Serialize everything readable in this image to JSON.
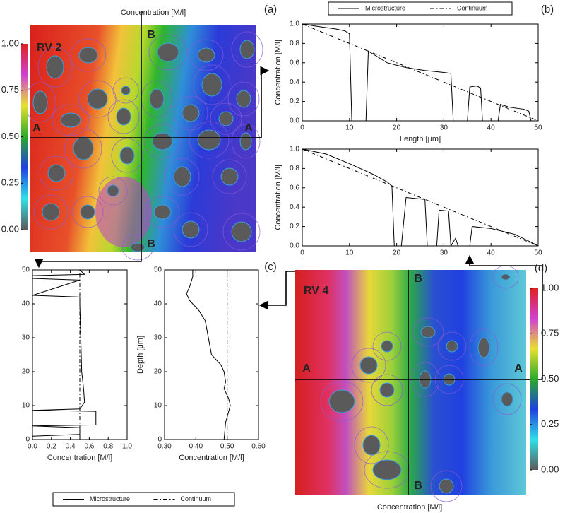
{
  "chart_data": [
    {
      "type": "heatmap",
      "title": "Concentration [M/l]",
      "panel": "(a)",
      "label": "RV 2",
      "section_labels": [
        "A",
        "A",
        "B",
        "B"
      ],
      "colorbar": {
        "lim": [
          0,
          1
        ],
        "ticks": [
          {
            "value": 0,
            "label": "0.00"
          },
          {
            "value": 0.25,
            "label": "0.25"
          },
          {
            "value": 0.5,
            "label": "0.50"
          },
          {
            "value": 0.75,
            "label": "0.75"
          },
          {
            "value": 1,
            "label": "1.00"
          }
        ],
        "colormap": [
          "#5a5a5a",
          "#30e0e8",
          "#2040e0",
          "#2aaa2a",
          "#e8e030",
          "#d040d0",
          "#e02020"
        ]
      }
    },
    {
      "type": "line",
      "panel": "(b)",
      "legend": "top",
      "ylabel": "Concentration [M/l]",
      "xlabel": "Length [μm]",
      "xlim": [
        0,
        50
      ],
      "ylim": [
        0,
        1
      ],
      "xticks": [
        0,
        10,
        20,
        30,
        40,
        50
      ],
      "yticks": [
        {
          "value": 0,
          "label": "0.0"
        },
        0.2,
        0.4,
        0.6,
        0.8,
        {
          "value": 1,
          "label": "1.0"
        }
      ],
      "series": [
        {
          "name": "Microstructure",
          "color": "#000000",
          "style": "solid",
          "x": [
            0,
            4,
            7,
            9,
            10,
            10.5,
            13.5,
            14,
            18,
            22,
            26,
            30,
            31.5,
            32,
            35,
            35.5,
            37,
            37.8,
            38.2,
            41.5,
            42,
            44,
            47,
            48,
            48.5,
            50
          ],
          "values": [
            1,
            0.97,
            0.95,
            0.93,
            0.9,
            0,
            0,
            0.72,
            0.6,
            0.55,
            0.52,
            0.5,
            0.49,
            0,
            0,
            0.35,
            0.36,
            0.34,
            0,
            0,
            0.17,
            0.14,
            0.12,
            0.1,
            0,
            0
          ]
        },
        {
          "name": "Continuum",
          "color": "#000000",
          "style": "dashdot",
          "x": [
            0,
            50
          ],
          "values": [
            1,
            0
          ]
        }
      ]
    },
    {
      "type": "line",
      "ylabel": "Concentration [M/l]",
      "xlim": [
        0,
        50
      ],
      "ylim": [
        0,
        1
      ],
      "xticks": [
        0,
        10,
        20,
        30,
        40,
        50
      ],
      "yticks": [
        {
          "value": 0,
          "label": "0.0"
        },
        0.2,
        0.4,
        0.6,
        0.8,
        {
          "value": 1,
          "label": "1.0"
        }
      ],
      "series": [
        {
          "color": "#000000",
          "style": "solid",
          "x": [
            0,
            5,
            10,
            15,
            18,
            19,
            19.5,
            21,
            22,
            26,
            26.5,
            28.5,
            29,
            31,
            31.5,
            32.5,
            33,
            35.5,
            36,
            40,
            45,
            48,
            50
          ],
          "values": [
            1,
            0.95,
            0.85,
            0.74,
            0.66,
            0.62,
            0,
            0,
            0.5,
            0.48,
            0,
            0,
            0.37,
            0.36,
            0,
            0.08,
            0,
            0,
            0.2,
            0.18,
            0.12,
            0.05,
            0
          ]
        },
        {
          "color": "#000000",
          "style": "dashdot",
          "x": [
            0,
            50
          ],
          "values": [
            1,
            0
          ]
        }
      ]
    },
    {
      "type": "line",
      "orientation": "vertical",
      "panel": "(c)",
      "legend": "bottom",
      "xlabel": "Concentration [M/l]",
      "xlim": [
        0,
        1
      ],
      "ylim": [
        0,
        50
      ],
      "xticks": [
        {
          "value": 0,
          "label": "0.0"
        },
        0.2,
        0.4,
        0.6,
        0.8,
        {
          "value": 1,
          "label": "1.0"
        }
      ],
      "yticks": [
        0,
        10,
        20,
        30,
        40,
        50
      ],
      "series": [
        {
          "name": "Microstructure",
          "color": "#000000",
          "style": "solid",
          "y": [
            0,
            1,
            1.5,
            3.5,
            4,
            4.3,
            8.3,
            8.6,
            9,
            11,
            15,
            20,
            30,
            40,
            42,
            42.5,
            47,
            47.5,
            48.3,
            48.7,
            50
          ],
          "values": [
            0,
            0,
            0.5,
            0.5,
            0,
            0.67,
            0.67,
            0,
            0.5,
            0.55,
            0.54,
            0.52,
            0.51,
            0.5,
            0.5,
            0,
            0.5,
            0,
            0,
            0.55,
            0.5
          ]
        },
        {
          "name": "Continuum",
          "color": "#000000",
          "style": "dashdot",
          "y": [
            0,
            50
          ],
          "values": [
            0.5,
            0.5
          ]
        }
      ]
    },
    {
      "type": "line",
      "orientation": "vertical",
      "xlabel": "Concentration [M/l]",
      "ylabel": "Depth [μm]",
      "xlim": [
        0.3,
        0.6
      ],
      "ylim": [
        0,
        50
      ],
      "xticks": [
        {
          "value": 0.3,
          "label": "0.30"
        },
        {
          "value": 0.4,
          "label": "0.40"
        },
        {
          "value": 0.5,
          "label": "0.50"
        },
        {
          "value": 0.6,
          "label": "0.60"
        }
      ],
      "yticks": [
        0,
        10,
        20,
        30,
        40,
        50
      ],
      "series": [
        {
          "color": "#000000",
          "style": "solid",
          "y": [
            0,
            5,
            10,
            12,
            15,
            17,
            20,
            22,
            25,
            30,
            35,
            38,
            41,
            43,
            45,
            48,
            50
          ],
          "values": [
            0.49,
            0.495,
            0.51,
            0.505,
            0.49,
            0.495,
            0.49,
            0.48,
            0.45,
            0.44,
            0.43,
            0.41,
            0.38,
            0.37,
            0.38,
            0.39,
            0.39
          ]
        },
        {
          "color": "#000000",
          "style": "dashdot",
          "y": [
            0,
            50
          ],
          "values": [
            0.5,
            0.5
          ]
        }
      ]
    },
    {
      "type": "heatmap",
      "title": "Concentration [M/l]",
      "panel": "(d)",
      "label": "RV 4",
      "section_labels": [
        "A",
        "A",
        "B",
        "B"
      ],
      "colorbar": {
        "lim": [
          0,
          1
        ],
        "ticks": [
          {
            "value": 0,
            "label": "0.00"
          },
          {
            "value": 0.25,
            "label": "0.25"
          },
          {
            "value": 0.5,
            "label": "0.50"
          },
          {
            "value": 0.75,
            "label": "0.75"
          },
          {
            "value": 1,
            "label": "1.00"
          }
        ],
        "colormap": [
          "#5a5a5a",
          "#30e0e8",
          "#2040e0",
          "#2aaa2a",
          "#e8e030",
          "#d040d0",
          "#e02020"
        ]
      }
    }
  ]
}
